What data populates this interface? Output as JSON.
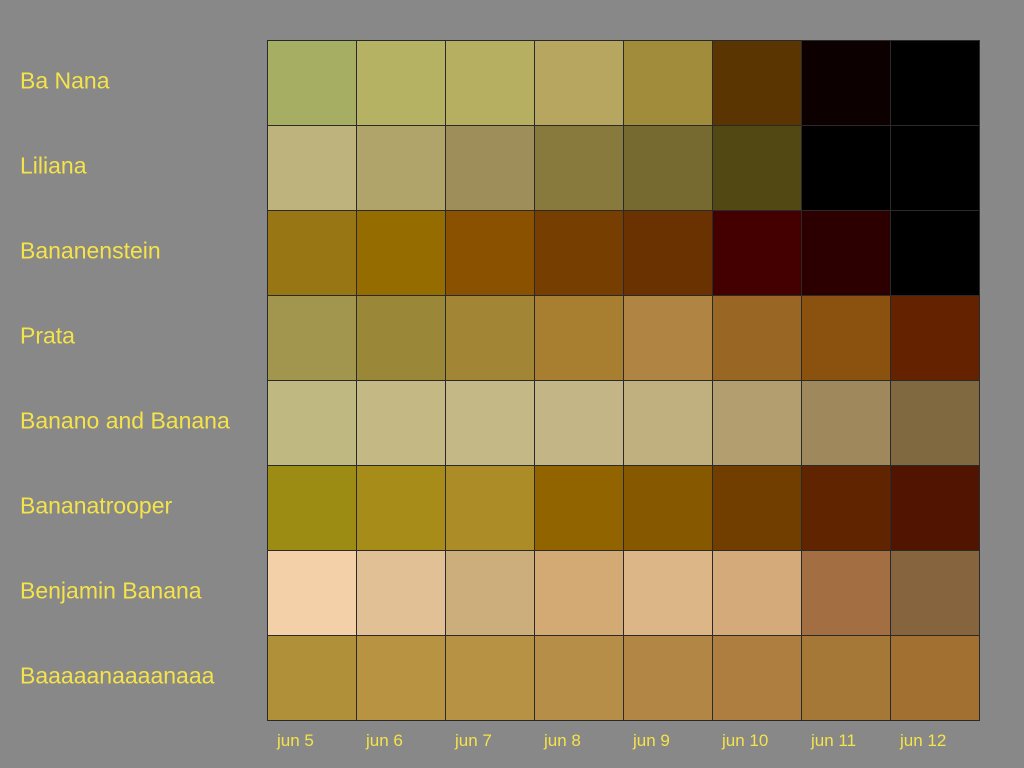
{
  "chart_data": {
    "type": "heatmap",
    "title": "",
    "xlabel": "",
    "ylabel": "",
    "columns": [
      "jun 5",
      "jun 6",
      "jun 7",
      "jun 8",
      "jun 9",
      "jun 10",
      "jun 11",
      "jun 12"
    ],
    "rows": [
      {
        "name": "Ba Nana",
        "colors": [
          "#a5ae62",
          "#b6b264",
          "#b6ae60",
          "#b6a660",
          "#a18c3b",
          "#5a3502",
          "#0c0000",
          "#000000"
        ]
      },
      {
        "name": "Liliana",
        "colors": [
          "#beb37d",
          "#b1a46b",
          "#9e8e5a",
          "#887a3d",
          "#766a30",
          "#524814",
          "#000000",
          "#000000"
        ]
      },
      {
        "name": "Bananenstein",
        "colors": [
          "#987614",
          "#946c00",
          "#8a5200",
          "#763e00",
          "#6a3200",
          "#440000",
          "#2c0000",
          "#000000"
        ]
      },
      {
        "name": "Prata",
        "colors": [
          "#a2964e",
          "#9a8838",
          "#a28636",
          "#a87e30",
          "#b08442",
          "#9a6624",
          "#8a520e",
          "#642200"
        ]
      },
      {
        "name": "Banano and Banana",
        "colors": [
          "#c0b881",
          "#c4b884",
          "#c4b886",
          "#c4b586",
          "#c0b080",
          "#b29e6e",
          "#9e885c",
          "#806840"
        ]
      },
      {
        "name": "Bananatrooper",
        "colors": [
          "#9c8c14",
          "#a88c1a",
          "#ac8c26",
          "#926400",
          "#865800",
          "#723e00",
          "#602400",
          "#501400"
        ]
      },
      {
        "name": "Benjamin Banana",
        "colors": [
          "#f3d0a8",
          "#e0c094",
          "#ccae7c",
          "#d4aa74",
          "#dcb686",
          "#d4aa7a",
          "#a26e42",
          "#86643e"
        ]
      },
      {
        "name": "Baaaaanaaaanaaa",
        "colors": [
          "#b09038",
          "#b89442",
          "#b89244",
          "#b68e48",
          "#b28644",
          "#ae7e40",
          "#a67838",
          "#a27030"
        ]
      }
    ]
  }
}
